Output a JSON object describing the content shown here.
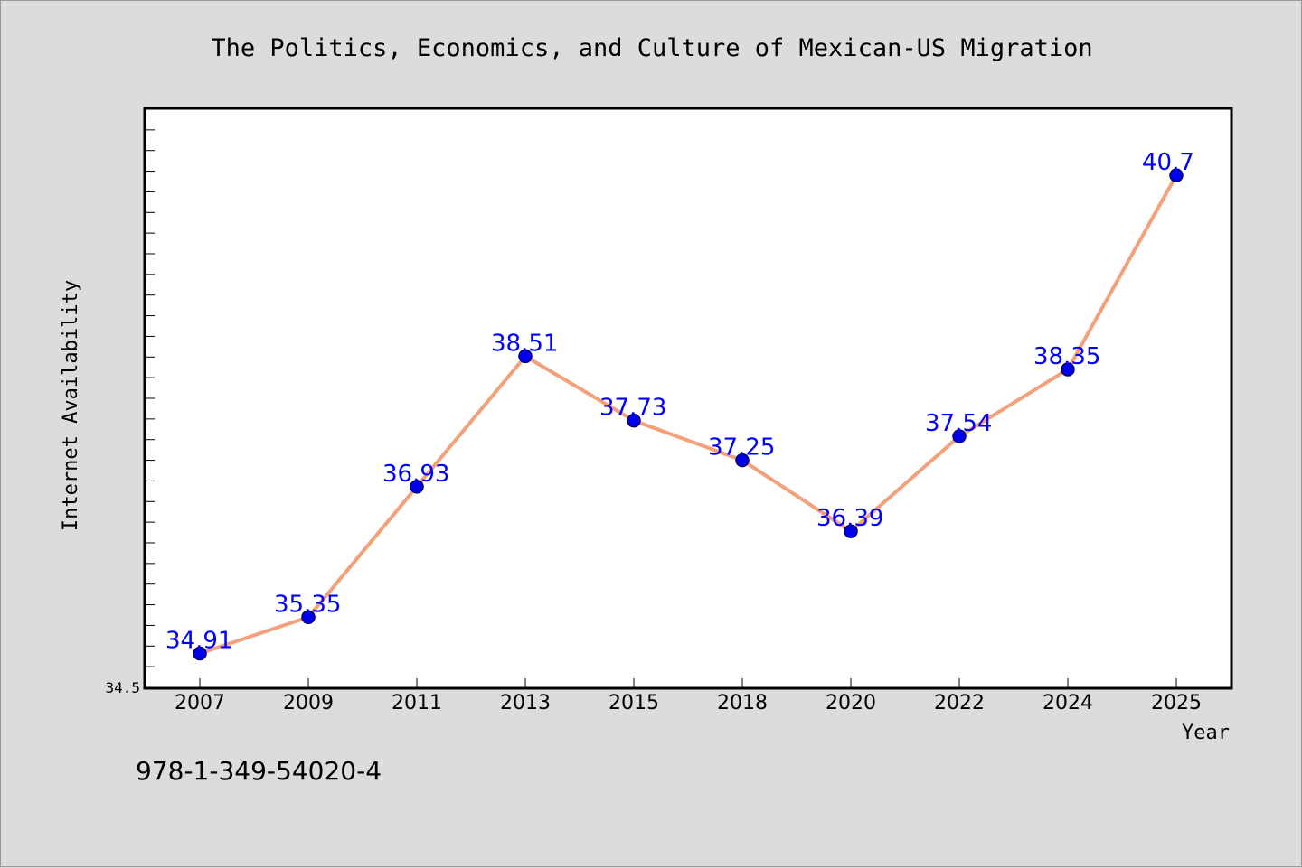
{
  "chart_data": {
    "type": "line",
    "title": "The Politics, Economics, and Culture of Mexican-US Migration",
    "xlabel": "Year",
    "ylabel": "Internet Availability",
    "categories": [
      "2007",
      "2009",
      "2011",
      "2013",
      "2015",
      "2018",
      "2020",
      "2022",
      "2024",
      "2025"
    ],
    "series": [
      {
        "values": [
          34.91,
          35.35,
          36.93,
          38.51,
          37.73,
          37.25,
          36.39,
          37.54,
          38.35,
          40.7
        ],
        "data_labels": [
          "34.91",
          "35.35",
          "36.93",
          "38.51",
          "37.73",
          "37.25",
          "36.39",
          "37.54",
          "38.35",
          "40.7"
        ]
      }
    ],
    "y_tick_labels": [
      "34.5"
    ],
    "ylim": [
      34.5,
      41.5
    ],
    "grid": false,
    "legend": "none",
    "annotation": "978-1-349-54020-4",
    "colors": {
      "line": "#f4a07a",
      "marker_fill": "#0000ee",
      "marker_edge": "#000066",
      "data_label": "#0000ff",
      "background": "#dcdcdc",
      "plot_background": "#ffffff"
    }
  }
}
